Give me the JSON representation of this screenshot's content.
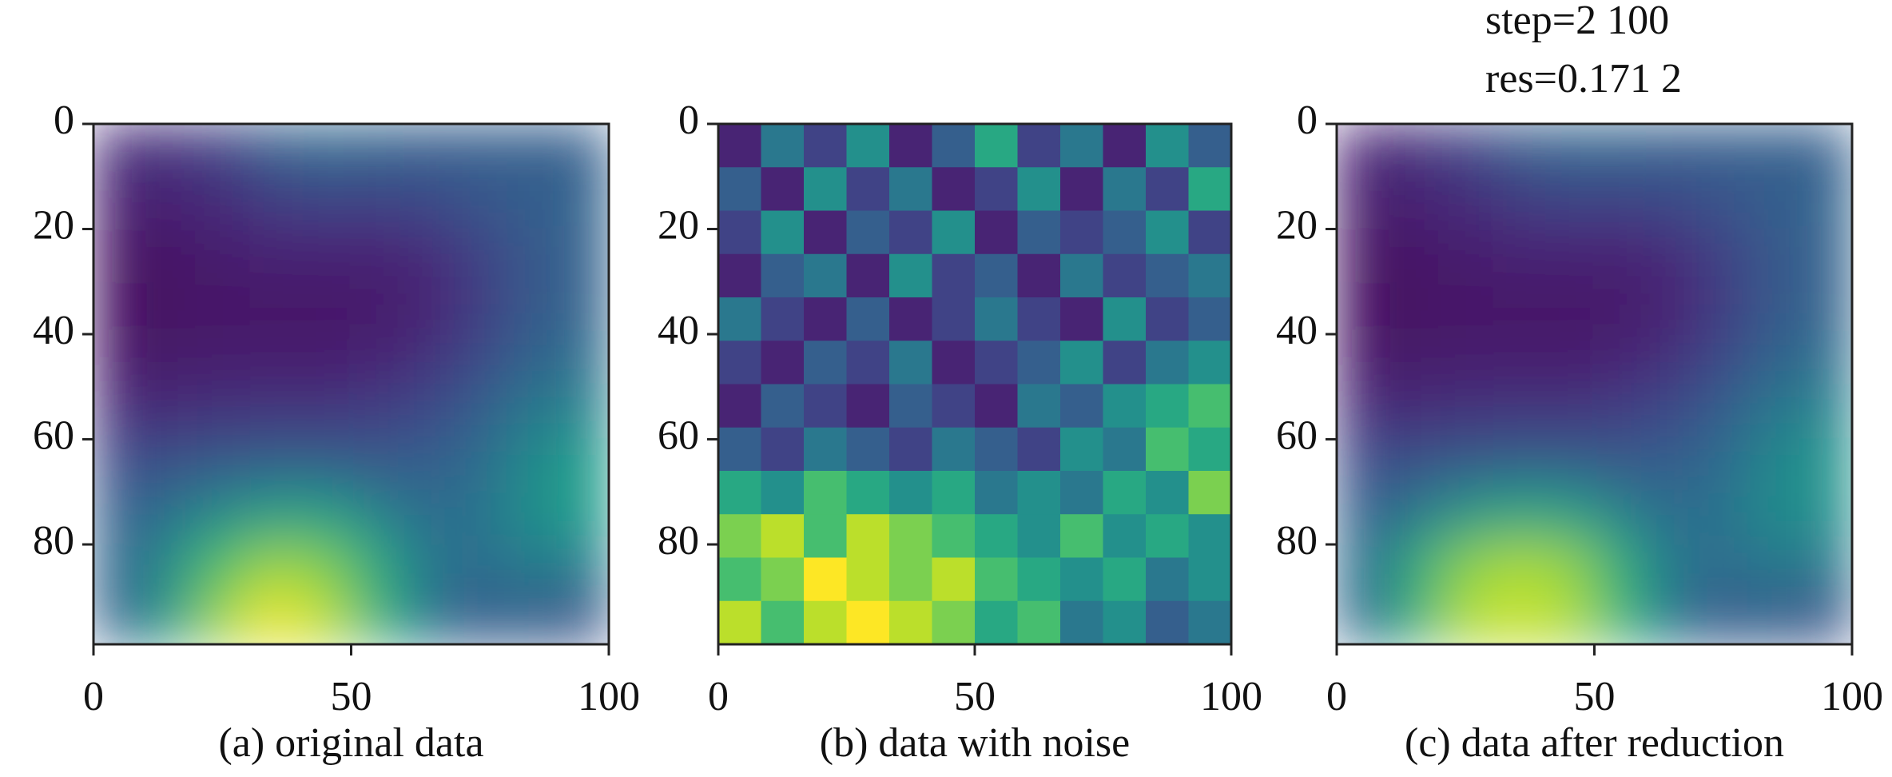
{
  "chart_data": [
    {
      "type": "heatmap",
      "caption": "(a) original data",
      "colormap": "viridis",
      "interpolation": "bilinear",
      "zlim": [
        0,
        1
      ],
      "xlim": [
        0,
        100
      ],
      "ylim": [
        99,
        0
      ],
      "xticks": [
        0,
        50,
        100
      ],
      "yticks": [
        0,
        20,
        40,
        60,
        80
      ],
      "z": [
        [
          0.12,
          0.15,
          0.2,
          0.3,
          0.33,
          0.32,
          0.3,
          0.3,
          0.3,
          0.3
        ],
        [
          0.08,
          0.1,
          0.12,
          0.18,
          0.2,
          0.2,
          0.22,
          0.27,
          0.3,
          0.32
        ],
        [
          0.05,
          0.06,
          0.08,
          0.1,
          0.1,
          0.1,
          0.12,
          0.2,
          0.28,
          0.32
        ],
        [
          0.04,
          0.05,
          0.06,
          0.06,
          0.06,
          0.07,
          0.1,
          0.18,
          0.28,
          0.32
        ],
        [
          0.06,
          0.07,
          0.08,
          0.08,
          0.08,
          0.1,
          0.14,
          0.22,
          0.32,
          0.36
        ],
        [
          0.12,
          0.12,
          0.14,
          0.15,
          0.15,
          0.18,
          0.22,
          0.3,
          0.4,
          0.45
        ],
        [
          0.22,
          0.25,
          0.28,
          0.3,
          0.3,
          0.28,
          0.3,
          0.35,
          0.48,
          0.55
        ],
        [
          0.3,
          0.38,
          0.48,
          0.55,
          0.55,
          0.45,
          0.35,
          0.38,
          0.5,
          0.55
        ],
        [
          0.32,
          0.5,
          0.72,
          0.85,
          0.8,
          0.6,
          0.4,
          0.35,
          0.42,
          0.42
        ],
        [
          0.3,
          0.55,
          0.85,
          0.98,
          0.9,
          0.65,
          0.38,
          0.28,
          0.3,
          0.25
        ]
      ]
    },
    {
      "type": "heatmap",
      "caption": "(b) data with noise",
      "colormap": "viridis",
      "interpolation": "nearest",
      "zlim": [
        0,
        1
      ],
      "xlim": [
        0,
        100
      ],
      "ylim": [
        99,
        0
      ],
      "xticks": [
        0,
        50,
        100
      ],
      "yticks": [
        0,
        20,
        40,
        60,
        80
      ],
      "z": [
        [
          0.1,
          0.4,
          0.2,
          0.5,
          0.1,
          0.3,
          0.6,
          0.2,
          0.4,
          0.1,
          0.5,
          0.3
        ],
        [
          0.3,
          0.1,
          0.5,
          0.2,
          0.4,
          0.1,
          0.2,
          0.5,
          0.1,
          0.4,
          0.2,
          0.6
        ],
        [
          0.2,
          0.5,
          0.1,
          0.3,
          0.2,
          0.5,
          0.1,
          0.3,
          0.2,
          0.3,
          0.5,
          0.2
        ],
        [
          0.1,
          0.3,
          0.4,
          0.1,
          0.5,
          0.2,
          0.3,
          0.1,
          0.4,
          0.2,
          0.3,
          0.4
        ],
        [
          0.4,
          0.2,
          0.1,
          0.3,
          0.1,
          0.2,
          0.4,
          0.2,
          0.1,
          0.5,
          0.2,
          0.3
        ],
        [
          0.2,
          0.1,
          0.3,
          0.2,
          0.4,
          0.1,
          0.2,
          0.3,
          0.5,
          0.2,
          0.4,
          0.5
        ],
        [
          0.1,
          0.3,
          0.2,
          0.1,
          0.3,
          0.2,
          0.1,
          0.4,
          0.3,
          0.5,
          0.6,
          0.7
        ],
        [
          0.3,
          0.2,
          0.4,
          0.3,
          0.2,
          0.4,
          0.3,
          0.2,
          0.5,
          0.4,
          0.7,
          0.6
        ],
        [
          0.6,
          0.5,
          0.7,
          0.6,
          0.5,
          0.6,
          0.4,
          0.5,
          0.4,
          0.6,
          0.5,
          0.8
        ],
        [
          0.8,
          0.9,
          0.7,
          0.9,
          0.8,
          0.7,
          0.6,
          0.5,
          0.7,
          0.5,
          0.6,
          0.5
        ],
        [
          0.7,
          0.8,
          1,
          0.9,
          0.8,
          0.9,
          0.7,
          0.6,
          0.5,
          0.6,
          0.4,
          0.5
        ],
        [
          0.9,
          0.7,
          0.9,
          1,
          0.9,
          0.8,
          0.6,
          0.7,
          0.4,
          0.5,
          0.3,
          0.4
        ]
      ]
    },
    {
      "type": "heatmap",
      "caption": "(c) data after reduction",
      "annotations": [
        "step=2 100",
        "res=0.171 2"
      ],
      "colormap": "viridis",
      "interpolation": "bilinear",
      "zlim": [
        0,
        1
      ],
      "xlim": [
        0,
        100
      ],
      "ylim": [
        99,
        0
      ],
      "xticks": [
        0,
        50,
        100
      ],
      "yticks": [
        0,
        20,
        40,
        60,
        80
      ],
      "z": [
        [
          0.1,
          0.14,
          0.2,
          0.28,
          0.32,
          0.32,
          0.3,
          0.3,
          0.3,
          0.3
        ],
        [
          0.07,
          0.1,
          0.12,
          0.17,
          0.2,
          0.2,
          0.22,
          0.26,
          0.3,
          0.32
        ],
        [
          0.05,
          0.06,
          0.08,
          0.1,
          0.1,
          0.1,
          0.12,
          0.2,
          0.28,
          0.32
        ],
        [
          0.04,
          0.05,
          0.06,
          0.06,
          0.06,
          0.07,
          0.1,
          0.18,
          0.28,
          0.32
        ],
        [
          0.06,
          0.07,
          0.08,
          0.08,
          0.08,
          0.1,
          0.14,
          0.22,
          0.32,
          0.36
        ],
        [
          0.12,
          0.12,
          0.14,
          0.15,
          0.15,
          0.18,
          0.22,
          0.3,
          0.4,
          0.45
        ],
        [
          0.22,
          0.25,
          0.28,
          0.3,
          0.3,
          0.28,
          0.3,
          0.35,
          0.47,
          0.52
        ],
        [
          0.3,
          0.4,
          0.52,
          0.58,
          0.56,
          0.45,
          0.35,
          0.38,
          0.48,
          0.5
        ],
        [
          0.35,
          0.6,
          0.82,
          0.88,
          0.84,
          0.62,
          0.4,
          0.35,
          0.4,
          0.4
        ],
        [
          0.32,
          0.62,
          0.88,
          0.92,
          0.88,
          0.66,
          0.38,
          0.28,
          0.3,
          0.25
        ]
      ]
    }
  ]
}
